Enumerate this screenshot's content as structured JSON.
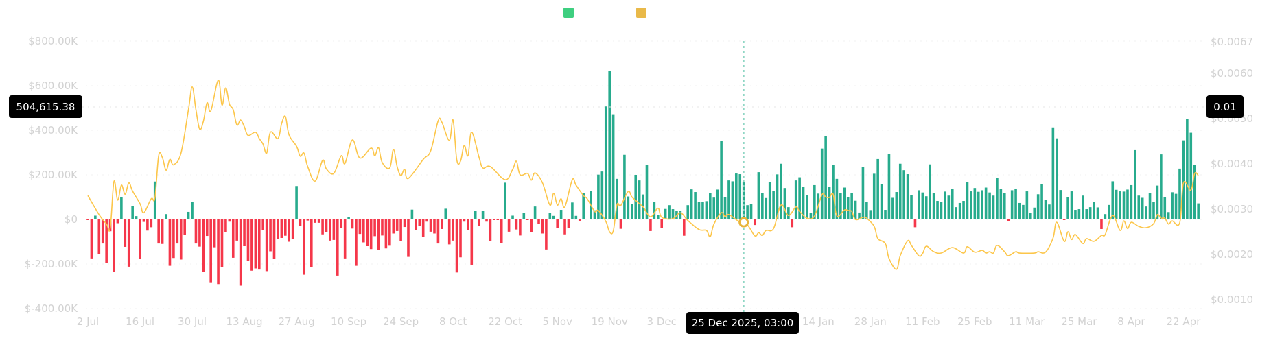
{
  "legend": {
    "items": [
      {
        "color": "#3ecf80"
      },
      {
        "color": "#e9b949"
      }
    ]
  },
  "crosshair": {
    "date_label": "25 Dec 2025, 03:00",
    "left_value": "504,615.38",
    "right_value": "0.01",
    "date": "2025-12-25",
    "left_level_k": 504.62
  },
  "chart_data": {
    "type": "bar+line",
    "title": "",
    "xlabel": "",
    "ylabel_left": "",
    "ylabel_right": "",
    "grid": true,
    "legend_position": "top-center",
    "colors": {
      "positive_bar": "#27ab8d",
      "negative_bar": "#f5374a",
      "line": "#fcc64a"
    },
    "x_ticks": [
      "2 Jul",
      "16 Jul",
      "30 Jul",
      "13 Aug",
      "27 Aug",
      "10 Sep",
      "24 Sep",
      "8 Oct",
      "22 Oct",
      "5 Nov",
      "19 Nov",
      "3 Dec",
      "14 Jan",
      "28 Jan",
      "11 Feb",
      "25 Feb",
      "11 Mar",
      "25 Mar",
      "8 Apr",
      "22 Apr"
    ],
    "x_tick_dates": [
      "2025-07-02",
      "2025-07-16",
      "2025-07-30",
      "2025-08-13",
      "2025-08-27",
      "2025-09-10",
      "2025-09-24",
      "2025-10-08",
      "2025-10-22",
      "2025-11-05",
      "2025-11-19",
      "2025-12-03",
      "2026-01-14",
      "2026-01-28",
      "2026-02-11",
      "2026-02-25",
      "2026-03-11",
      "2026-03-25",
      "2026-04-08",
      "2026-04-22"
    ],
    "y_left": {
      "ticks": [
        "$800.00K",
        "$600.00K",
        "$400.00K",
        "$200.00K",
        "$0",
        "$-200.00K",
        "$-400.00K"
      ],
      "tick_values_k": [
        800,
        600,
        400,
        200,
        0,
        -200,
        -400
      ],
      "range_k": [
        -400,
        800
      ]
    },
    "y_right": {
      "ticks": [
        "$0.0067",
        "$0.0060",
        "$0.0050",
        "$0.0040",
        "$0.0030",
        "$0.0020",
        "$0.0010"
      ],
      "tick_values": [
        0.0067,
        0.006,
        0.005,
        0.004,
        0.003,
        0.002,
        0.001
      ]
    },
    "bars_unit": "K USD, daily; array index + 1 = day of month",
    "bars": {
      "2025-07": [
        null,
        -3,
        -175,
        17,
        -155,
        -108,
        -195,
        -53,
        -235,
        -17,
        100,
        -123,
        -212,
        60,
        15,
        -178,
        -11,
        -50,
        -35,
        170,
        -108,
        -110,
        24,
        -208,
        -173,
        -108,
        -180,
        -68,
        34,
        78,
        -108
      ],
      "2025-08": [
        -122,
        -236,
        -74,
        -282,
        -125,
        -290,
        -215,
        -58,
        -10,
        -172,
        -95,
        -297,
        -120,
        -187,
        -230,
        -220,
        -225,
        -47,
        -232,
        -143,
        -178,
        -87,
        -83,
        -73,
        -100,
        -88,
        150,
        -28,
        -248,
        -5,
        -213
      ],
      "2025-09": [
        -15,
        -15,
        -67,
        -58,
        -95,
        -92,
        -252,
        -37,
        -175,
        12,
        -41,
        -208,
        -65,
        -103,
        -120,
        -133,
        -75,
        -138,
        -72,
        -130,
        -118,
        -63,
        -52,
        -98,
        -34,
        -168,
        44,
        -47,
        -28,
        -78
      ],
      "2025-10": [
        -10,
        -55,
        -63,
        -108,
        -43,
        48,
        -112,
        -95,
        -238,
        -170,
        -10,
        -47,
        -203,
        40,
        -30,
        38,
        -10,
        -97,
        -2,
        -2,
        -107,
        165,
        -55,
        17,
        -45,
        -72,
        29,
        -2,
        -58,
        58,
        -20
      ],
      "2025-11": [
        -63,
        -135,
        29,
        16,
        -40,
        43,
        -67,
        -37,
        76,
        16,
        -7,
        120,
        0,
        128,
        41,
        201,
        215,
        507,
        665,
        472,
        182,
        -42,
        290,
        103,
        68,
        200,
        175,
        112,
        246,
        -52
      ],
      "2025-12": [
        80,
        20,
        -39,
        47,
        64,
        46,
        39,
        40,
        -73,
        64,
        135,
        123,
        80,
        79,
        82,
        120,
        98,
        134,
        351,
        99,
        175,
        171,
        206,
        203,
        166,
        64,
        68,
        -25,
        212,
        119,
        96
      ],
      "2026-01": [
        168,
        127,
        202,
        250,
        141,
        55,
        -35,
        175,
        189,
        146,
        110,
        29,
        154,
        116,
        318,
        374,
        146,
        245,
        182,
        117,
        143,
        100,
        117,
        84,
        31,
        236,
        80,
        42,
        205,
        271,
        157
      ],
      "2026-02": [
        43,
        294,
        97,
        123,
        250,
        221,
        203,
        110,
        -35,
        131,
        121,
        104,
        247,
        119,
        83,
        77,
        125,
        107,
        138,
        55,
        74,
        83,
        167,
        126,
        141,
        124,
        131,
        143
      ],
      "2026-03": [
        121,
        107,
        185,
        138,
        118,
        -9,
        131,
        137,
        74,
        65,
        126,
        28,
        53,
        113,
        160,
        88,
        67,
        413,
        364,
        132,
        -1,
        101,
        126,
        43,
        46,
        107,
        46,
        55,
        78,
        54,
        -43
      ],
      "2026-04": [
        24,
        65,
        171,
        133,
        126,
        125,
        134,
        154,
        311,
        107,
        97,
        58,
        117,
        78,
        152,
        292,
        99,
        33,
        122,
        115,
        228,
        355,
        452,
        389,
        246,
        72
      ]
    },
    "line": [
      [
        "2025-07-02",
        0.0033
      ],
      [
        "2025-07-05",
        0.00288
      ],
      [
        "2025-07-07",
        0.00267
      ],
      [
        "2025-07-08",
        0.00258
      ],
      [
        "2025-07-09",
        0.00361
      ],
      [
        "2025-07-10",
        0.0032
      ],
      [
        "2025-07-11",
        0.00353
      ],
      [
        "2025-07-12",
        0.00333
      ],
      [
        "2025-07-13",
        0.00358
      ],
      [
        "2025-07-14",
        0.0034
      ],
      [
        "2025-07-16",
        0.00312
      ],
      [
        "2025-07-17",
        0.00292
      ],
      [
        "2025-07-19",
        0.00323
      ],
      [
        "2025-07-20",
        0.00325
      ],
      [
        "2025-07-21",
        0.00418
      ],
      [
        "2025-07-22",
        0.00414
      ],
      [
        "2025-07-23",
        0.00386
      ],
      [
        "2025-07-24",
        0.0041
      ],
      [
        "2025-07-25",
        0.00398
      ],
      [
        "2025-07-27",
        0.00424
      ],
      [
        "2025-07-29",
        0.0052
      ],
      [
        "2025-07-30",
        0.0057
      ],
      [
        "2025-07-31",
        0.0052
      ],
      [
        "2025-08-01",
        0.00477
      ],
      [
        "2025-08-02",
        0.00494
      ],
      [
        "2025-08-03",
        0.00535
      ],
      [
        "2025-08-04",
        0.00517
      ],
      [
        "2025-08-06",
        0.00585
      ],
      [
        "2025-08-07",
        0.0053
      ],
      [
        "2025-08-08",
        0.00568
      ],
      [
        "2025-08-09",
        0.00532
      ],
      [
        "2025-08-10",
        0.0052
      ],
      [
        "2025-08-11",
        0.00486
      ],
      [
        "2025-08-12",
        0.00497
      ],
      [
        "2025-08-13",
        0.00482
      ],
      [
        "2025-08-14",
        0.00463
      ],
      [
        "2025-08-16",
        0.0047
      ],
      [
        "2025-08-17",
        0.00456
      ],
      [
        "2025-08-18",
        0.00444
      ],
      [
        "2025-08-19",
        0.00424
      ],
      [
        "2025-08-20",
        0.0047
      ],
      [
        "2025-08-22",
        0.00456
      ],
      [
        "2025-08-23",
        0.00489
      ],
      [
        "2025-08-24",
        0.00505
      ],
      [
        "2025-08-25",
        0.00464
      ],
      [
        "2025-08-27",
        0.00439
      ],
      [
        "2025-08-28",
        0.00417
      ],
      [
        "2025-08-29",
        0.00424
      ],
      [
        "2025-08-30",
        0.00394
      ],
      [
        "2025-09-01",
        0.00362
      ],
      [
        "2025-09-03",
        0.00408
      ],
      [
        "2025-09-04",
        0.00389
      ],
      [
        "2025-09-06",
        0.00379
      ],
      [
        "2025-09-08",
        0.00418
      ],
      [
        "2025-09-09",
        0.00401
      ],
      [
        "2025-09-11",
        0.00453
      ],
      [
        "2025-09-13",
        0.00413
      ],
      [
        "2025-09-16",
        0.00435
      ],
      [
        "2025-09-17",
        0.00418
      ],
      [
        "2025-09-18",
        0.00436
      ],
      [
        "2025-09-19",
        0.00403
      ],
      [
        "2025-09-21",
        0.00391
      ],
      [
        "2025-09-22",
        0.00432
      ],
      [
        "2025-09-23",
        0.00394
      ],
      [
        "2025-09-24",
        0.00374
      ],
      [
        "2025-09-25",
        0.00388
      ],
      [
        "2025-09-26",
        0.00368
      ],
      [
        "2025-09-30",
        0.0041
      ],
      [
        "2025-10-02",
        0.00429
      ],
      [
        "2025-10-04",
        0.00495
      ],
      [
        "2025-10-05",
        0.00492
      ],
      [
        "2025-10-07",
        0.00452
      ],
      [
        "2025-10-08",
        0.00497
      ],
      [
        "2025-10-09",
        0.00409
      ],
      [
        "2025-10-10",
        0.00406
      ],
      [
        "2025-10-11",
        0.00441
      ],
      [
        "2025-10-12",
        0.00418
      ],
      [
        "2025-10-13",
        0.0047
      ],
      [
        "2025-10-15",
        0.00414
      ],
      [
        "2025-10-16",
        0.00391
      ],
      [
        "2025-10-18",
        0.00394
      ],
      [
        "2025-10-22",
        0.00365
      ],
      [
        "2025-10-24",
        0.00388
      ],
      [
        "2025-10-25",
        0.00406
      ],
      [
        "2025-10-26",
        0.00376
      ],
      [
        "2025-10-28",
        0.00379
      ],
      [
        "2025-10-29",
        0.00364
      ],
      [
        "2025-10-30",
        0.0038
      ],
      [
        "2025-11-01",
        0.00358
      ],
      [
        "2025-11-03",
        0.00309
      ],
      [
        "2025-11-04",
        0.00335
      ],
      [
        "2025-11-05",
        0.00309
      ],
      [
        "2025-11-06",
        0.00323
      ],
      [
        "2025-11-07",
        0.00305
      ],
      [
        "2025-11-09",
        0.00365
      ],
      [
        "2025-11-10",
        0.00353
      ],
      [
        "2025-11-12",
        0.0033
      ],
      [
        "2025-11-13",
        0.00323
      ],
      [
        "2025-11-15",
        0.00295
      ],
      [
        "2025-11-16",
        0.00297
      ],
      [
        "2025-11-18",
        0.00273
      ],
      [
        "2025-11-19",
        0.0025
      ],
      [
        "2025-11-20",
        0.00252
      ],
      [
        "2025-11-21",
        0.0031
      ],
      [
        "2025-11-22",
        0.00308
      ],
      [
        "2025-11-24",
        0.00339
      ],
      [
        "2025-11-25",
        0.00327
      ],
      [
        "2025-11-27",
        0.00312
      ],
      [
        "2025-11-28",
        0.00305
      ],
      [
        "2025-11-30",
        0.00283
      ],
      [
        "2025-12-02",
        0.00302
      ],
      [
        "2025-12-03",
        0.00282
      ],
      [
        "2025-12-06",
        0.00279
      ],
      [
        "2025-12-08",
        0.00292
      ],
      [
        "2025-12-10",
        0.00275
      ],
      [
        "2025-12-13",
        0.00255
      ],
      [
        "2025-12-15",
        0.00253
      ],
      [
        "2025-12-16",
        0.00239
      ],
      [
        "2025-12-17",
        0.00267
      ],
      [
        "2025-12-19",
        0.00292
      ],
      [
        "2025-12-20",
        0.00283
      ],
      [
        "2025-12-21",
        0.00288
      ],
      [
        "2025-12-24",
        0.00271
      ],
      [
        "2025-12-26",
        0.00265
      ],
      [
        "2025-12-28",
        0.00241
      ],
      [
        "2025-12-29",
        0.00248
      ],
      [
        "2025-12-30",
        0.00242
      ],
      [
        "2025-12-31",
        0.00253
      ],
      [
        "2026-01-02",
        0.00257
      ],
      [
        "2026-01-04",
        0.00309
      ],
      [
        "2026-01-06",
        0.00286
      ],
      [
        "2026-01-08",
        0.00305
      ],
      [
        "2026-01-09",
        0.00295
      ],
      [
        "2026-01-11",
        0.0028
      ],
      [
        "2026-01-13",
        0.00285
      ],
      [
        "2026-01-15",
        0.00332
      ],
      [
        "2026-01-16",
        0.00327
      ],
      [
        "2026-01-17",
        0.00326
      ],
      [
        "2026-01-18",
        0.00333
      ],
      [
        "2026-01-19",
        0.00285
      ],
      [
        "2026-01-21",
        0.00298
      ],
      [
        "2026-01-22",
        0.00297
      ],
      [
        "2026-01-23",
        0.00295
      ],
      [
        "2026-01-24",
        0.00277
      ],
      [
        "2026-01-26",
        0.00282
      ],
      [
        "2026-01-27",
        0.0028
      ],
      [
        "2026-01-29",
        0.00262
      ],
      [
        "2026-01-30",
        0.00235
      ],
      [
        "2026-02-01",
        0.00224
      ],
      [
        "2026-02-02",
        0.00191
      ],
      [
        "2026-02-04",
        0.00167
      ],
      [
        "2026-02-05",
        0.00197
      ],
      [
        "2026-02-07",
        0.0023
      ],
      [
        "2026-02-08",
        0.0022
      ],
      [
        "2026-02-10",
        0.00197
      ],
      [
        "2026-02-11",
        0.00202
      ],
      [
        "2026-02-12",
        0.00218
      ],
      [
        "2026-02-14",
        0.00206
      ],
      [
        "2026-02-16",
        0.00203
      ],
      [
        "2026-02-19",
        0.00215
      ],
      [
        "2026-02-22",
        0.00203
      ],
      [
        "2026-02-23",
        0.00217
      ],
      [
        "2026-02-25",
        0.00205
      ],
      [
        "2026-02-27",
        0.00209
      ],
      [
        "2026-02-28",
        0.00203
      ],
      [
        "2026-03-01",
        0.00206
      ],
      [
        "2026-03-02",
        0.00203
      ],
      [
        "2026-03-03",
        0.0022
      ],
      [
        "2026-03-05",
        0.00206
      ],
      [
        "2026-03-06",
        0.00197
      ],
      [
        "2026-03-08",
        0.00206
      ],
      [
        "2026-03-09",
        0.00203
      ],
      [
        "2026-03-13",
        0.00203
      ],
      [
        "2026-03-14",
        0.00206
      ],
      [
        "2026-03-16",
        0.00205
      ],
      [
        "2026-03-18",
        0.00236
      ],
      [
        "2026-03-19",
        0.00271
      ],
      [
        "2026-03-21",
        0.00229
      ],
      [
        "2026-03-22",
        0.0025
      ],
      [
        "2026-03-23",
        0.00233
      ],
      [
        "2026-03-24",
        0.00244
      ],
      [
        "2026-03-26",
        0.00224
      ],
      [
        "2026-03-27",
        0.00235
      ],
      [
        "2026-03-29",
        0.00229
      ],
      [
        "2026-03-31",
        0.00242
      ],
      [
        "2026-04-01",
        0.00244
      ],
      [
        "2026-04-03",
        0.00286
      ],
      [
        "2026-04-05",
        0.00253
      ],
      [
        "2026-04-06",
        0.00274
      ],
      [
        "2026-04-07",
        0.00257
      ],
      [
        "2026-04-08",
        0.00271
      ],
      [
        "2026-04-10",
        0.00262
      ],
      [
        "2026-04-12",
        0.00259
      ],
      [
        "2026-04-14",
        0.00268
      ],
      [
        "2026-04-15",
        0.00288
      ],
      [
        "2026-04-16",
        0.0028
      ],
      [
        "2026-04-17",
        0.0028
      ],
      [
        "2026-04-18",
        0.00267
      ],
      [
        "2026-04-19",
        0.00274
      ],
      [
        "2026-04-21",
        0.0027
      ],
      [
        "2026-04-22",
        0.00358
      ],
      [
        "2026-04-24",
        0.00342
      ],
      [
        "2026-04-25",
        0.00379
      ],
      [
        "2026-04-26",
        0.00374
      ]
    ]
  }
}
